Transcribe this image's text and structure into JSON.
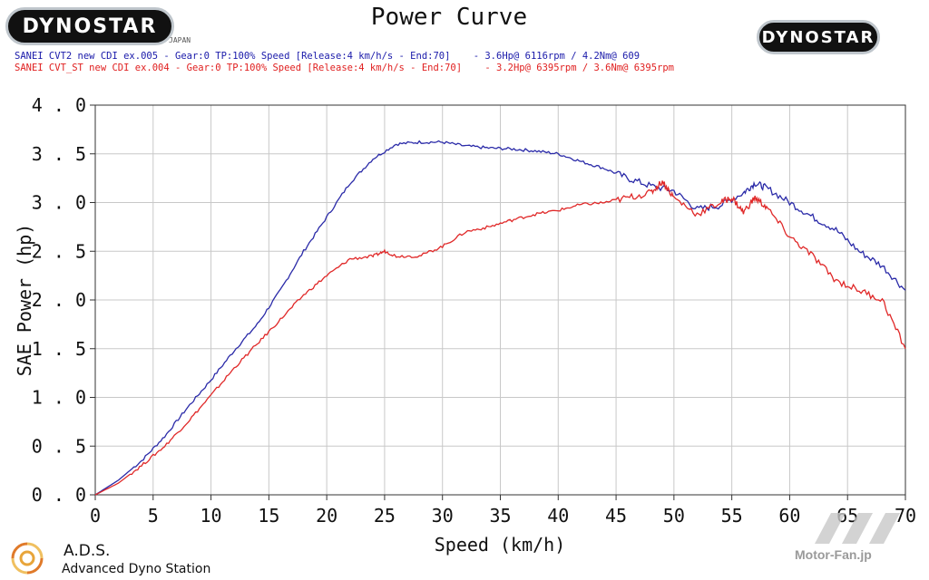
{
  "header": {
    "logo_left": "DYNOSTAR",
    "logo_left_sub": "JAPAN",
    "logo_right": "DYNOSTAR"
  },
  "chart_data": {
    "type": "line",
    "title": "Power Curve",
    "xlabel": "Speed (km/h)",
    "ylabel": "SAE Power (hp)",
    "xlim": [
      0,
      70
    ],
    "ylim": [
      0,
      4
    ],
    "x_ticks": [
      "0",
      "5",
      "10",
      "15",
      "20",
      "25",
      "30",
      "35",
      "40",
      "45",
      "50",
      "55",
      "60",
      "65",
      "70"
    ],
    "y_ticks": [
      "0.0",
      "0.5",
      "1.0",
      "1.5",
      "2.0",
      "2.5",
      "3.0",
      "3.5",
      "4.0"
    ],
    "grid": true,
    "series": [
      {
        "name": "SANEI CVT2 new CDI ex.005 - Gear:0 TP:100% Speed [Release:4 km/h/s - End:70]    - 3.6Hp@ 6116rpm / 4.2Nm@ 609",
        "color": "#2a2aa8",
        "x": [
          0,
          2,
          4,
          6,
          8,
          10,
          12,
          14,
          16,
          18,
          20,
          22,
          24,
          26,
          28,
          30,
          32,
          34,
          36,
          38,
          40,
          42,
          44,
          46,
          48,
          50,
          52,
          54,
          56,
          57,
          58,
          60,
          62,
          64,
          66,
          68,
          70
        ],
        "y": [
          0,
          0.15,
          0.35,
          0.6,
          0.9,
          1.18,
          1.48,
          1.75,
          2.1,
          2.5,
          2.85,
          3.2,
          3.45,
          3.6,
          3.62,
          3.62,
          3.58,
          3.56,
          3.55,
          3.53,
          3.5,
          3.42,
          3.35,
          3.25,
          3.17,
          3.12,
          2.93,
          2.97,
          3.1,
          3.2,
          3.15,
          3.0,
          2.85,
          2.72,
          2.5,
          2.35,
          2.1
        ]
      },
      {
        "name": "SANEI CVT_ST new CDI ex.004 - Gear:0 TP:100% Speed [Release:4 km/h/s - End:70]    - 3.2Hp@ 6395rpm / 3.6Nm@ 6395rpm",
        "color": "#e02828",
        "x": [
          0,
          2,
          4,
          6,
          8,
          10,
          12,
          14,
          16,
          18,
          20,
          22,
          24,
          25,
          26,
          28,
          30,
          32,
          34,
          36,
          38,
          40,
          42,
          44,
          46,
          48,
          49,
          50,
          52,
          54,
          55,
          56,
          57,
          58,
          60,
          62,
          64,
          66,
          68,
          70
        ],
        "y": [
          0,
          0.12,
          0.3,
          0.5,
          0.75,
          1.02,
          1.3,
          1.55,
          1.8,
          2.05,
          2.25,
          2.42,
          2.45,
          2.5,
          2.45,
          2.45,
          2.55,
          2.7,
          2.75,
          2.82,
          2.88,
          2.92,
          2.98,
          3.0,
          3.05,
          3.1,
          3.22,
          3.05,
          2.88,
          3.0,
          3.05,
          2.9,
          3.05,
          2.95,
          2.65,
          2.45,
          2.2,
          2.1,
          2.0,
          1.5
        ]
      }
    ]
  },
  "footer": {
    "ads_name": "A.D.S.",
    "ads_full": "Advanced Dyno Station",
    "watermark": "Motor-Fan.jp"
  }
}
